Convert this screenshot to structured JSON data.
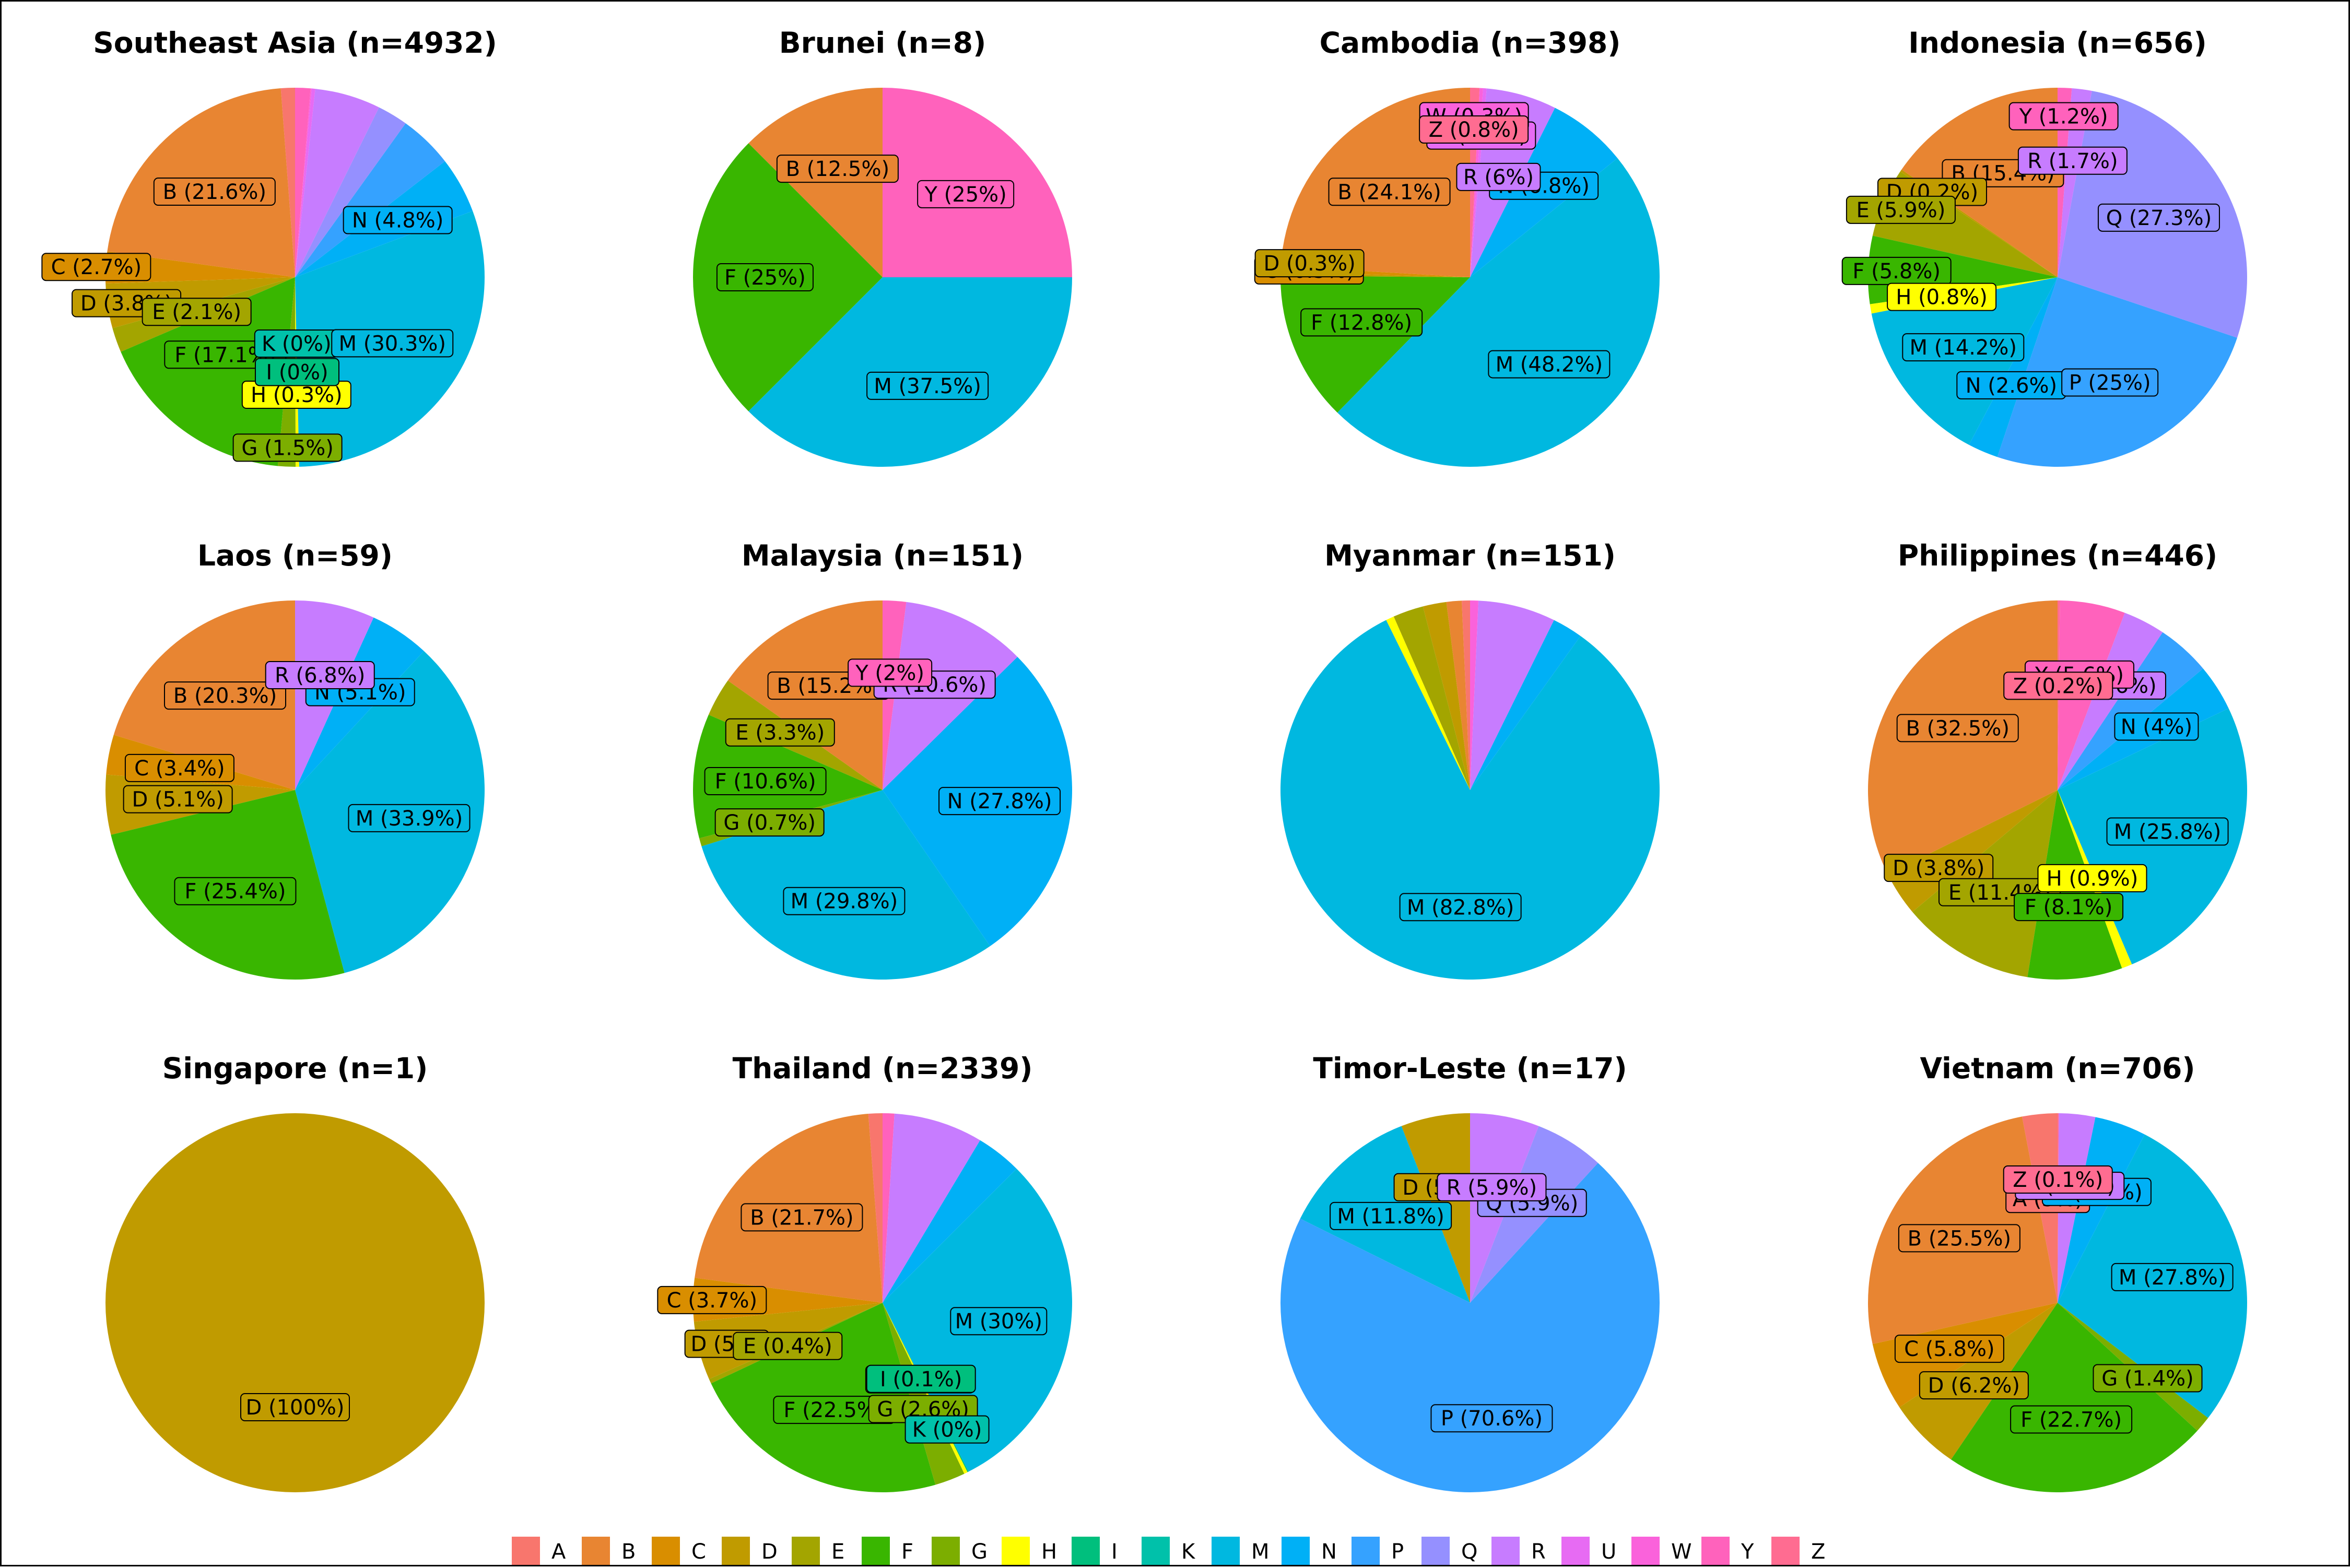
{
  "colors": {
    "A": "#F8766D",
    "B": "#E88532",
    "C": "#D98E00",
    "D": "#C09B00",
    "E": "#A3A500",
    "F": "#39B600",
    "G": "#7CAE00",
    "H": "#FFFF00",
    "I": "#00BF7D",
    "K": "#00C1AA",
    "M": "#00B8E0",
    "N": "#00B0F6",
    "P": "#35A2FF",
    "Q": "#9590FF",
    "R": "#C77CFF",
    "U": "#E76BF3",
    "W": "#FA62DB",
    "Y": "#FF62BC",
    "Z": "#FF6C91"
  },
  "legend": [
    "A",
    "B",
    "C",
    "D",
    "E",
    "F",
    "G",
    "H",
    "I",
    "K",
    "M",
    "N",
    "P",
    "Q",
    "R",
    "U",
    "W",
    "Y",
    "Z"
  ],
  "chart_data": [
    {
      "type": "pie",
      "title": "Southeast Asia (n=4932)",
      "slices": [
        {
          "category": "A",
          "value": 1.2
        },
        {
          "category": "B",
          "value": 21.6,
          "label": "B (21.6%)"
        },
        {
          "category": "C",
          "value": 2.7,
          "label": "C (2.7%)"
        },
        {
          "category": "D",
          "value": 3.8,
          "label": "D (3.8%)"
        },
        {
          "category": "E",
          "value": 2.1,
          "label": "E (2.1%)"
        },
        {
          "category": "F",
          "value": 17.1,
          "label": "F (17.1%)"
        },
        {
          "category": "G",
          "value": 1.5,
          "label": "G (1.5%)"
        },
        {
          "category": "H",
          "value": 0.3,
          "label": "H (0.3%)"
        },
        {
          "category": "I",
          "value": 0,
          "label": "I (0%)"
        },
        {
          "category": "K",
          "value": 0,
          "label": "K (0%)"
        },
        {
          "category": "M",
          "value": 30.3,
          "label": "M (30.3%)"
        },
        {
          "category": "N",
          "value": 4.8,
          "label": "N (4.8%)"
        },
        {
          "category": "P",
          "value": 4.6
        },
        {
          "category": "Q",
          "value": 2.6
        },
        {
          "category": "R",
          "value": 5.6
        },
        {
          "category": "U",
          "value": 0.3
        },
        {
          "category": "W",
          "value": 0.1
        },
        {
          "category": "Y",
          "value": 1.3
        }
      ]
    },
    {
      "type": "pie",
      "title": "Brunei (n=8)",
      "slices": [
        {
          "category": "B",
          "value": 12.5,
          "label": "B (12.5%)"
        },
        {
          "category": "F",
          "value": 25,
          "label": "F (25%)"
        },
        {
          "category": "M",
          "value": 37.5,
          "label": "M (37.5%)"
        },
        {
          "category": "Y",
          "value": 25,
          "label": "Y (25%)"
        }
      ]
    },
    {
      "type": "pie",
      "title": "Cambodia (n=398)",
      "slices": [
        {
          "category": "B",
          "value": 24.1,
          "label": "B (24.1%)"
        },
        {
          "category": "C",
          "value": 0.5,
          "label": "C (0.5%)"
        },
        {
          "category": "D",
          "value": 0.3,
          "label": "D (0.3%)"
        },
        {
          "category": "F",
          "value": 12.8,
          "label": "F (12.8%)"
        },
        {
          "category": "M",
          "value": 48.2,
          "label": "M (48.2%)"
        },
        {
          "category": "N",
          "value": 6.8,
          "label": "N (6.8%)"
        },
        {
          "category": "R",
          "value": 6,
          "label": "R (6%)"
        },
        {
          "category": "U",
          "value": 0.3,
          "label": "U (0.3%)"
        },
        {
          "category": "W",
          "value": 0.3,
          "label": "W (0.3%)"
        },
        {
          "category": "Z",
          "value": 0.8,
          "label": "Z (0.8%)"
        }
      ]
    },
    {
      "type": "pie",
      "title": "Indonesia (n=656)",
      "slices": [
        {
          "category": "B",
          "value": 15.4,
          "label": "B (15.4%)"
        },
        {
          "category": "D",
          "value": 0.2,
          "label": "D (0.2%)"
        },
        {
          "category": "E",
          "value": 5.9,
          "label": "E (5.9%)"
        },
        {
          "category": "F",
          "value": 5.8,
          "label": "F (5.8%)"
        },
        {
          "category": "H",
          "value": 0.8,
          "label": "H (0.8%)"
        },
        {
          "category": "M",
          "value": 14.2,
          "label": "M (14.2%)"
        },
        {
          "category": "N",
          "value": 2.6,
          "label": "N (2.6%)"
        },
        {
          "category": "P",
          "value": 25,
          "label": "P (25%)"
        },
        {
          "category": "Q",
          "value": 27.3,
          "label": "Q (27.3%)"
        },
        {
          "category": "R",
          "value": 1.7,
          "label": "R (1.7%)"
        },
        {
          "category": "Y",
          "value": 1.2,
          "label": "Y (1.2%)"
        }
      ]
    },
    {
      "type": "pie",
      "title": "Laos (n=59)",
      "slices": [
        {
          "category": "B",
          "value": 20.3,
          "label": "B (20.3%)"
        },
        {
          "category": "C",
          "value": 3.4,
          "label": "C (3.4%)"
        },
        {
          "category": "D",
          "value": 5.1,
          "label": "D (5.1%)"
        },
        {
          "category": "F",
          "value": 25.4,
          "label": "F (25.4%)"
        },
        {
          "category": "M",
          "value": 33.9,
          "label": "M (33.9%)"
        },
        {
          "category": "N",
          "value": 5.1,
          "label": "N (5.1%)"
        },
        {
          "category": "R",
          "value": 6.8,
          "label": "R (6.8%)"
        }
      ]
    },
    {
      "type": "pie",
      "title": "Malaysia (n=151)",
      "slices": [
        {
          "category": "B",
          "value": 15.2,
          "label": "B (15.2%)"
        },
        {
          "category": "E",
          "value": 3.3,
          "label": "E (3.3%)"
        },
        {
          "category": "F",
          "value": 10.6,
          "label": "F (10.6%)"
        },
        {
          "category": "G",
          "value": 0.7,
          "label": "G (0.7%)"
        },
        {
          "category": "M",
          "value": 29.8,
          "label": "M (29.8%)"
        },
        {
          "category": "N",
          "value": 27.8,
          "label": "N (27.8%)"
        },
        {
          "category": "R",
          "value": 10.6,
          "label": "R (10.6%)"
        },
        {
          "category": "Y",
          "value": 2,
          "label": "Y (2%)"
        }
      ]
    },
    {
      "type": "pie",
      "title": "Myanmar (n=151)",
      "slices": [
        {
          "category": "A",
          "value": 0.7
        },
        {
          "category": "B",
          "value": 1.3
        },
        {
          "category": "D",
          "value": 2
        },
        {
          "category": "E",
          "value": 2.6
        },
        {
          "category": "H",
          "value": 0.7
        },
        {
          "category": "M",
          "value": 82.8,
          "label": "M (82.8%)"
        },
        {
          "category": "N",
          "value": 2.6
        },
        {
          "category": "R",
          "value": 6.6
        },
        {
          "category": "W",
          "value": 0.7
        }
      ]
    },
    {
      "type": "pie",
      "title": "Philippines (n=446)",
      "slices": [
        {
          "category": "B",
          "value": 32.5,
          "label": "B (32.5%)"
        },
        {
          "category": "D",
          "value": 3.8,
          "label": "D (3.8%)"
        },
        {
          "category": "E",
          "value": 11.4,
          "label": "E (11.4%)"
        },
        {
          "category": "F",
          "value": 8.1,
          "label": "F (8.1%)"
        },
        {
          "category": "H",
          "value": 0.9,
          "label": "H (0.9%)"
        },
        {
          "category": "M",
          "value": 25.8,
          "label": "M (25.8%)"
        },
        {
          "category": "N",
          "value": 4,
          "label": "N (4%)"
        },
        {
          "category": "P",
          "value": 4.6
        },
        {
          "category": "R",
          "value": 3.6,
          "label": "R (3.6%)"
        },
        {
          "category": "Y",
          "value": 5.6,
          "label": "Y (5.6%)"
        },
        {
          "category": "Z",
          "value": 0.2,
          "label": "Z (0.2%)"
        }
      ]
    },
    {
      "type": "pie",
      "title": "Singapore (n=1)",
      "slices": [
        {
          "category": "D",
          "value": 100,
          "label": "D (100%)"
        }
      ]
    },
    {
      "type": "pie",
      "title": "Thailand (n=2339)",
      "slices": [
        {
          "category": "A",
          "value": 1.2
        },
        {
          "category": "B",
          "value": 21.7,
          "label": "B (21.7%)"
        },
        {
          "category": "C",
          "value": 3.7,
          "label": "C (3.7%)"
        },
        {
          "category": "D",
          "value": 5,
          "label": "D (5%)"
        },
        {
          "category": "E",
          "value": 0.4,
          "label": "E (0.4%)"
        },
        {
          "category": "F",
          "value": 22.5,
          "label": "F (22.5%)"
        },
        {
          "category": "G",
          "value": 2.6,
          "label": "G (2.6%)"
        },
        {
          "category": "H",
          "value": 0.3,
          "label": "H (0.3%)"
        },
        {
          "category": "I",
          "value": 0.1,
          "label": "I (0.1%)"
        },
        {
          "category": "K",
          "value": 0,
          "label": "K (0%)"
        },
        {
          "category": "M",
          "value": 30,
          "label": "M (30%)"
        },
        {
          "category": "N",
          "value": 3.9
        },
        {
          "category": "R",
          "value": 7.6
        },
        {
          "category": "Y",
          "value": 1
        }
      ]
    },
    {
      "type": "pie",
      "title": "Timor-Leste (n=17)",
      "slices": [
        {
          "category": "D",
          "value": 5.9,
          "label": "D (5.9%)"
        },
        {
          "category": "M",
          "value": 11.8,
          "label": "M (11.8%)"
        },
        {
          "category": "P",
          "value": 70.6,
          "label": "P (70.6%)"
        },
        {
          "category": "Q",
          "value": 5.9,
          "label": "Q (5.9%)"
        },
        {
          "category": "R",
          "value": 5.9,
          "label": "R (5.9%)"
        }
      ]
    },
    {
      "type": "pie",
      "title": "Vietnam (n=706)",
      "slices": [
        {
          "category": "A",
          "value": 3,
          "label": "A (3%)"
        },
        {
          "category": "B",
          "value": 25.5,
          "label": "B (25.5%)"
        },
        {
          "category": "C",
          "value": 5.8,
          "label": "C (5.8%)"
        },
        {
          "category": "D",
          "value": 6.2,
          "label": "D (6.2%)"
        },
        {
          "category": "F",
          "value": 22.7,
          "label": "F (22.7%)"
        },
        {
          "category": "G",
          "value": 1.4,
          "label": "G (1.4%)"
        },
        {
          "category": "M",
          "value": 27.8,
          "label": "M (27.8%)"
        },
        {
          "category": "N",
          "value": 4.4,
          "label": "N (4.4%)"
        },
        {
          "category": "R",
          "value": 3.1,
          "label": "R (3.1%)"
        },
        {
          "category": "Z",
          "value": 0.1,
          "label": "Z (0.1%)"
        }
      ]
    }
  ]
}
